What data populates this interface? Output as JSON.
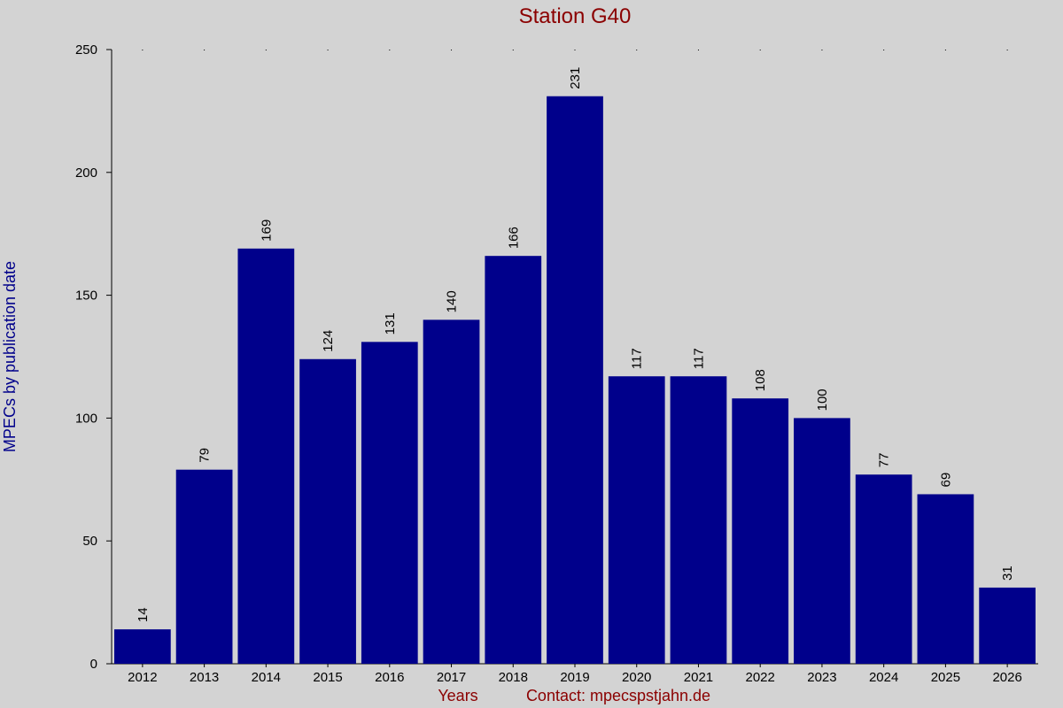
{
  "chart_data": {
    "type": "bar",
    "title": "Station G40",
    "xlabel": "Years",
    "ylabel": "MPECs by publication date",
    "contact": "Contact: mpecspstjahn.de",
    "categories": [
      "2012",
      "2013",
      "2014",
      "2015",
      "2016",
      "2017",
      "2018",
      "2019",
      "2020",
      "2021",
      "2022",
      "2023",
      "2024",
      "2025",
      "2026"
    ],
    "values": [
      14,
      79,
      169,
      124,
      131,
      140,
      166,
      231,
      117,
      117,
      108,
      100,
      77,
      69,
      31
    ],
    "ylim": [
      0,
      250
    ],
    "yticks": [
      0,
      50,
      100,
      150,
      200,
      250
    ],
    "bar_color": "#00008b",
    "background_color": "#d3d3d3",
    "grid": false
  }
}
